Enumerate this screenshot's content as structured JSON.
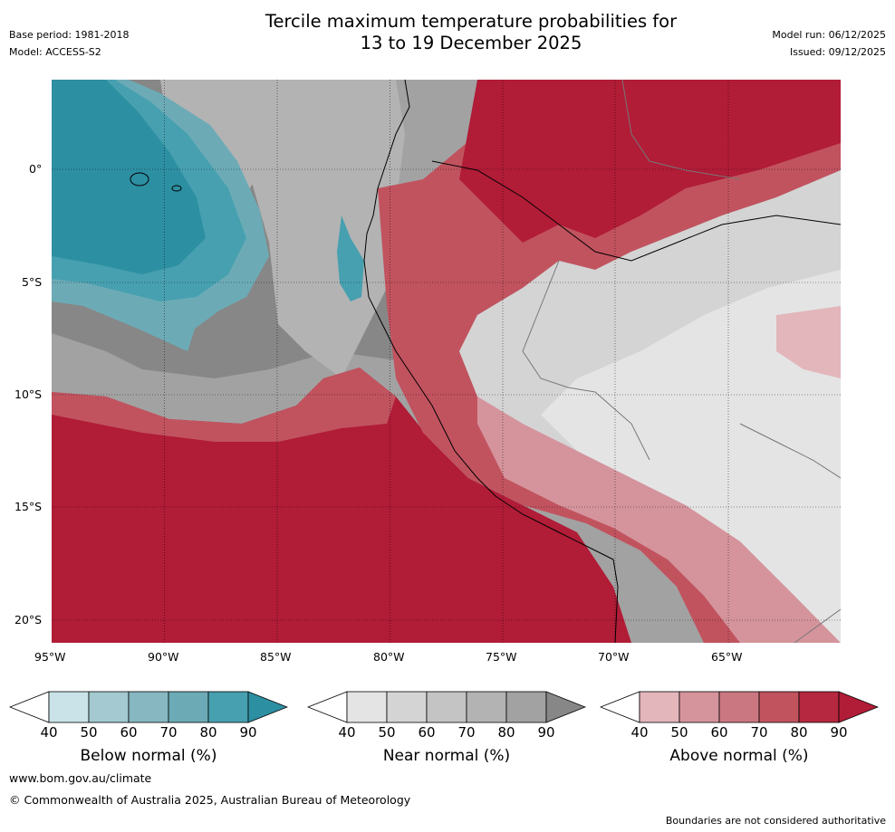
{
  "header": {
    "title_line1": "Tercile maximum temperature probabilities for",
    "title_line2": "13 to 19 December 2025",
    "base_period": "Base period: 1981-2018",
    "model": "Model: ACCESS-S2",
    "model_run": "Model run: 06/12/2025",
    "issued": "Issued: 09/12/2025"
  },
  "map": {
    "lon_ticks": [
      "95°W",
      "90°W",
      "85°W",
      "80°W",
      "75°W",
      "70°W",
      "65°W"
    ],
    "lat_ticks": [
      "0°",
      "5°S",
      "10°S",
      "15°S",
      "20°S"
    ]
  },
  "colorbars": [
    {
      "label": "Below normal (%)",
      "ticks": [
        "40",
        "50",
        "60",
        "70",
        "80",
        "90"
      ],
      "colors": [
        "#c9e3e8",
        "#a4c9d0",
        "#87b8c2",
        "#6cabb6",
        "#47a0b0",
        "#2d8fa2"
      ]
    },
    {
      "label": "Near normal (%)",
      "ticks": [
        "40",
        "50",
        "60",
        "70",
        "80",
        "90"
      ],
      "colors": [
        "#e4e4e4",
        "#d4d4d4",
        "#c4c4c4",
        "#b3b3b3",
        "#a2a2a2",
        "#878787"
      ]
    },
    {
      "label": "Above normal (%)",
      "ticks": [
        "40",
        "50",
        "60",
        "70",
        "80",
        "90"
      ],
      "colors": [
        "#e2b6bb",
        "#d5949c",
        "#cb7781",
        "#c1535f",
        "#b6283f",
        "#b11c37"
      ]
    }
  ],
  "footer": {
    "website": "www.bom.gov.au/climate",
    "copyright": "© Commonwealth of Australia 2025, Australian Bureau of Meteorology",
    "disclaimer": "Boundaries are not considered authoritative"
  }
}
